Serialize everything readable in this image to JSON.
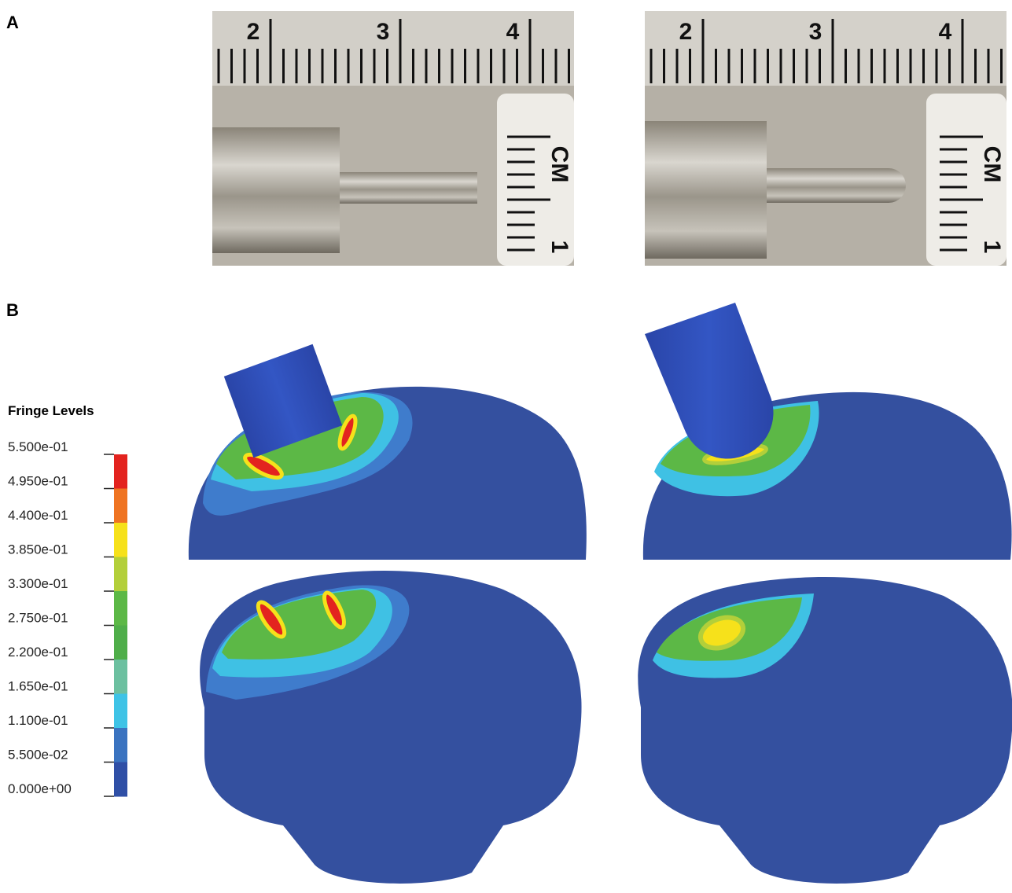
{
  "panels": {
    "a": {
      "label": "A",
      "photos": [
        {
          "ruler": [
            "2",
            "3",
            "4"
          ],
          "scale": [
            "CM",
            "1"
          ]
        },
        {
          "ruler": [
            "2",
            "3",
            "4"
          ],
          "scale": [
            "CM",
            "1"
          ]
        }
      ]
    },
    "b": {
      "label": "B"
    }
  },
  "legend": {
    "title": "Fringe Levels",
    "labels": [
      "5.500e-01",
      "4.950e-01",
      "4.400e-01",
      "3.850e-01",
      "3.300e-01",
      "2.750e-01",
      "2.200e-01",
      "1.650e-01",
      "1.100e-01",
      "5.500e-02",
      "0.000e+00"
    ],
    "colors": [
      "#e3231f",
      "#ef7422",
      "#f6e11b",
      "#b3cf3a",
      "#5cb846",
      "#4fae4a",
      "#6cc0a0",
      "#3ec3e6",
      "#3a73c0",
      "#2f4fa6"
    ]
  }
}
